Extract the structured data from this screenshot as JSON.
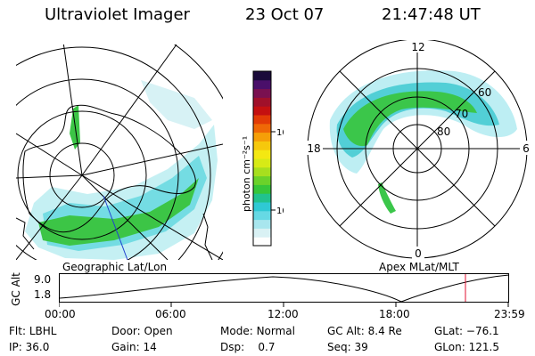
{
  "header": {
    "instrument": "Ultraviolet Imager",
    "date": "23 Oct 07",
    "time": "21:47:48 UT"
  },
  "left_panel": {
    "caption": "Geographic Lat/Lon"
  },
  "right_panel": {
    "caption": "Apex MLat/MLT",
    "mlt_labels": {
      "top": "12",
      "left": "18",
      "right": "6",
      "bottom": "0"
    },
    "lat_labels": [
      "60",
      "70",
      "80"
    ]
  },
  "colorbar": {
    "unit_label": "photon cm⁻²s⁻¹",
    "ticks": [
      "100",
      "10"
    ],
    "colors": [
      "#fefefe",
      "#d9f1f4",
      "#a8e6ee",
      "#66d9e4",
      "#2fc9d4",
      "#21c28e",
      "#36c63a",
      "#6bd22a",
      "#a7df1e",
      "#d7ea16",
      "#f4e812",
      "#f6c80c",
      "#f59f08",
      "#ef6806",
      "#e23b06",
      "#c41010",
      "#a0102a",
      "#7a1050",
      "#4a0f6a",
      "#1a0a3a"
    ]
  },
  "altitude_plot": {
    "ylabel": "GC Alt",
    "yticks": [
      "9.0",
      "1.8"
    ],
    "xticks": [
      "00:00",
      "06:00",
      "12:00",
      "18:00",
      "23:59"
    ],
    "marker_color": "#e01030"
  },
  "info": {
    "flt_label": "Flt:",
    "flt_value": "LBHL",
    "door_label": "Door:",
    "door_value": "Open",
    "mode_label": "Mode:",
    "mode_value": "Normal",
    "gcalt_label": "GC Alt:",
    "gcalt_value": "8.4 Re",
    "glat_label": "GLat:",
    "glat_value": "−76.1",
    "ip_label": "IP:",
    "ip_value": "36.0",
    "gain_label": "Gain:",
    "gain_value": "14",
    "dsp_label": "Dsp:",
    "dsp_value": "0.7",
    "seq_label": "Seq:",
    "seq_value": "39",
    "glon_label": "GLon:",
    "glon_value": "121.5"
  }
}
